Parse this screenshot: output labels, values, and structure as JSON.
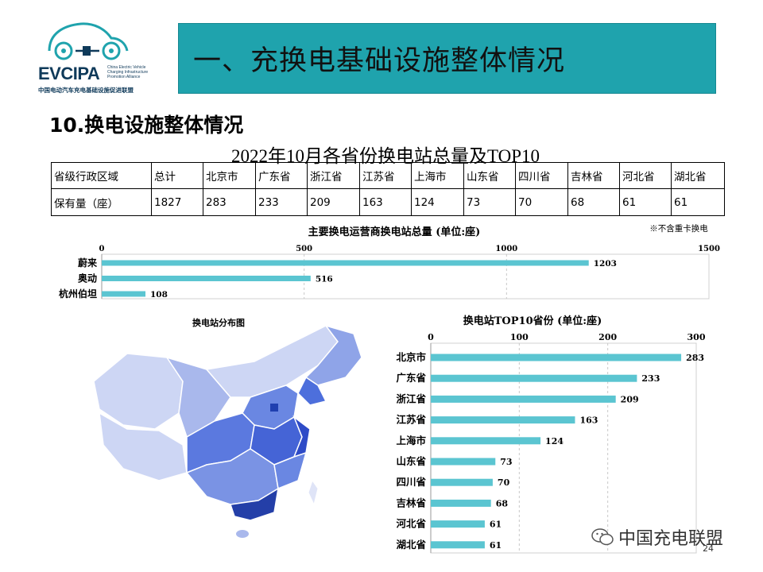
{
  "logo": {
    "brand": "EVCIPA",
    "sub": "China Electric Vehicle Charging Infrastructure Promotion Alliance",
    "cn": "中国电动汽车充电基础设施促进联盟"
  },
  "header": {
    "title": "一、充换电基础设施整体情况"
  },
  "section": {
    "title": "10.换电设施整体情况"
  },
  "table": {
    "title": "2022年10月各省份换电站总量及TOP10",
    "row1": [
      "省级行政区域",
      "总计",
      "北京市",
      "广东省",
      "浙江省",
      "江苏省",
      "上海市",
      "山东省",
      "四川省",
      "吉林省",
      "河北省",
      "湖北省"
    ],
    "row2": [
      "保有量（座）",
      "1827",
      "283",
      "233",
      "209",
      "163",
      "124",
      "73",
      "70",
      "68",
      "61",
      "61"
    ]
  },
  "chart_data": [
    {
      "type": "bar",
      "orientation": "horizontal",
      "title": "主要换电运营商换电站总量 (单位:座)",
      "note": "※不含重卡换电",
      "categories": [
        "蔚来",
        "奥动",
        "杭州伯坦"
      ],
      "values": [
        1203,
        516,
        108
      ],
      "xlim": [
        0,
        1500
      ],
      "ticks": [
        "0",
        "500",
        "1000",
        "1500"
      ],
      "color": "#5bc5d1"
    },
    {
      "type": "bar",
      "orientation": "horizontal",
      "title": "换电站TOP10省份 (单位:座)",
      "categories": [
        "北京市",
        "广东省",
        "浙江省",
        "江苏省",
        "上海市",
        "山东省",
        "四川省",
        "吉林省",
        "河北省",
        "湖北省"
      ],
      "values": [
        283,
        233,
        209,
        163,
        124,
        73,
        70,
        68,
        61,
        61
      ],
      "xlim": [
        0,
        300
      ],
      "ticks": [
        "0",
        "100",
        "200",
        "300"
      ],
      "color": "#5bc5d1"
    }
  ],
  "map": {
    "title": "换电站分布图"
  },
  "watermark": {
    "text": "中国充电联盟"
  },
  "page": {
    "number": "24"
  }
}
